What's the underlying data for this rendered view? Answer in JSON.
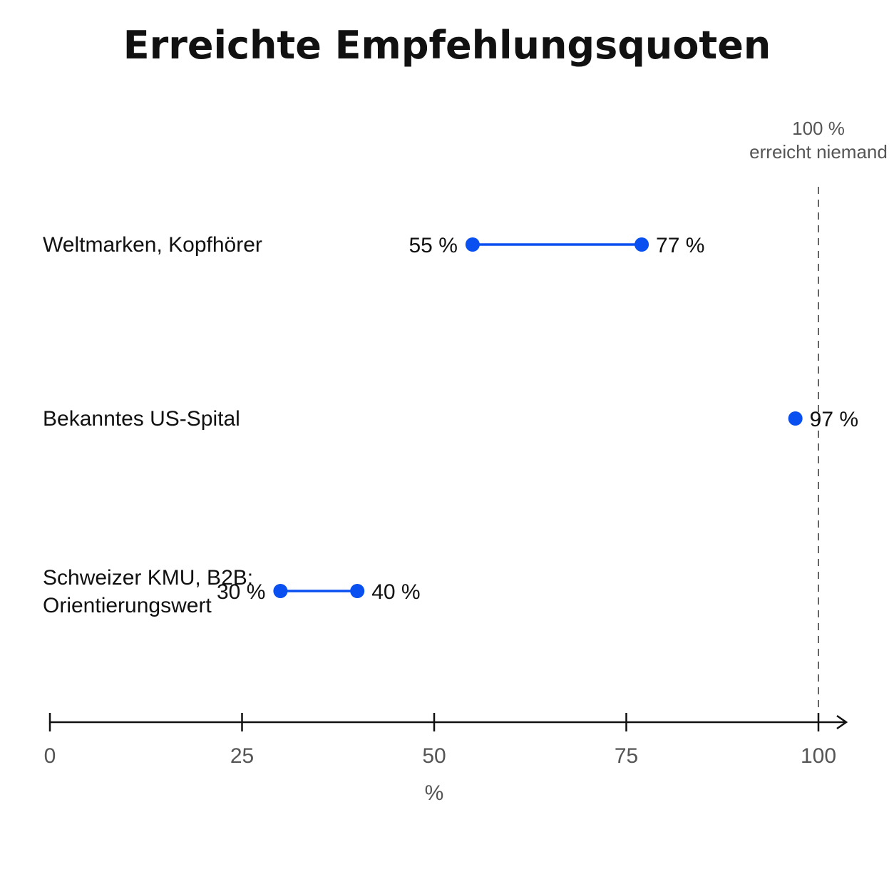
{
  "chart_data": {
    "type": "dumbbell",
    "title": "Erreichte Empfehlungsquoten",
    "xlabel": "%",
    "ylabel": "",
    "xlim": [
      0,
      100
    ],
    "x_ticks": [
      0,
      25,
      50,
      75,
      100
    ],
    "tick_labels": [
      "0",
      "25",
      "50",
      "75",
      "100"
    ],
    "grid": false,
    "legend": null,
    "accent_color": "#0a4ff0",
    "reference_line": {
      "x": 100,
      "style": "dashed",
      "label_lines": [
        "100 %",
        "erreicht niemand"
      ]
    },
    "rows": [
      {
        "category_lines": [
          "Weltmarken, Kopfhörer"
        ],
        "low": 55,
        "high": 77,
        "low_label": "55 %",
        "high_label": "77 %"
      },
      {
        "category_lines": [
          "Bekanntes US-Spital"
        ],
        "low": 97,
        "high": 97,
        "low_label": "",
        "high_label": "97 %"
      },
      {
        "category_lines": [
          "Schweizer KMU, B2B:",
          "Orientierungswert"
        ],
        "low": 30,
        "high": 40,
        "low_label": "30 %",
        "high_label": "40 %"
      }
    ]
  }
}
